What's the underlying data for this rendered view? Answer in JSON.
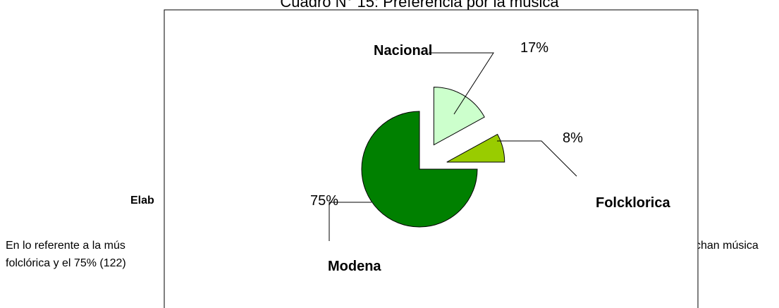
{
  "chart_data": {
    "type": "pie",
    "title": "Cuadro N° 15: Preferencia por la música",
    "categories": [
      "Nacional",
      "Folcklorica",
      "Modena"
    ],
    "values": [
      17,
      8,
      75
    ],
    "value_labels": [
      "17%",
      "8%",
      "75%"
    ],
    "colors": [
      "#ccffcc",
      "#99cc00",
      "#008000"
    ]
  },
  "document_text": [
    "Elab",
    "En lo referente a la mús",
    "chan música",
    "folclórica y el 75% (122)"
  ]
}
